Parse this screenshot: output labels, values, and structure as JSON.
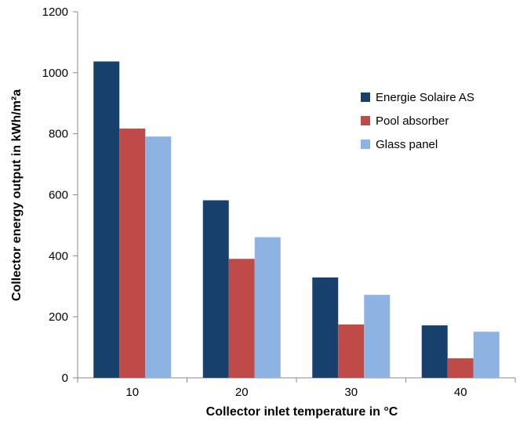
{
  "chart_data": {
    "type": "bar",
    "categories": [
      "10",
      "20",
      "30",
      "40"
    ],
    "series": [
      {
        "name": "Energie Solaire AS",
        "values": [
          1037,
          582,
          329,
          172
        ],
        "color": "#17406d"
      },
      {
        "name": "Pool absorber",
        "values": [
          817,
          390,
          175,
          64
        ],
        "color": "#be4b48"
      },
      {
        "name": "Glass panel",
        "values": [
          791,
          461,
          272,
          151
        ],
        "color": "#8db3e2"
      }
    ],
    "title": "",
    "xlabel": "Collector inlet temperature in °C",
    "ylabel": "Collector energy output in kWh/m²a",
    "ylim": [
      0,
      1200
    ],
    "yticks": [
      "0",
      "200",
      "400",
      "600",
      "800",
      "1000",
      "1200"
    ],
    "grid": false,
    "legend_position": "top-right"
  }
}
